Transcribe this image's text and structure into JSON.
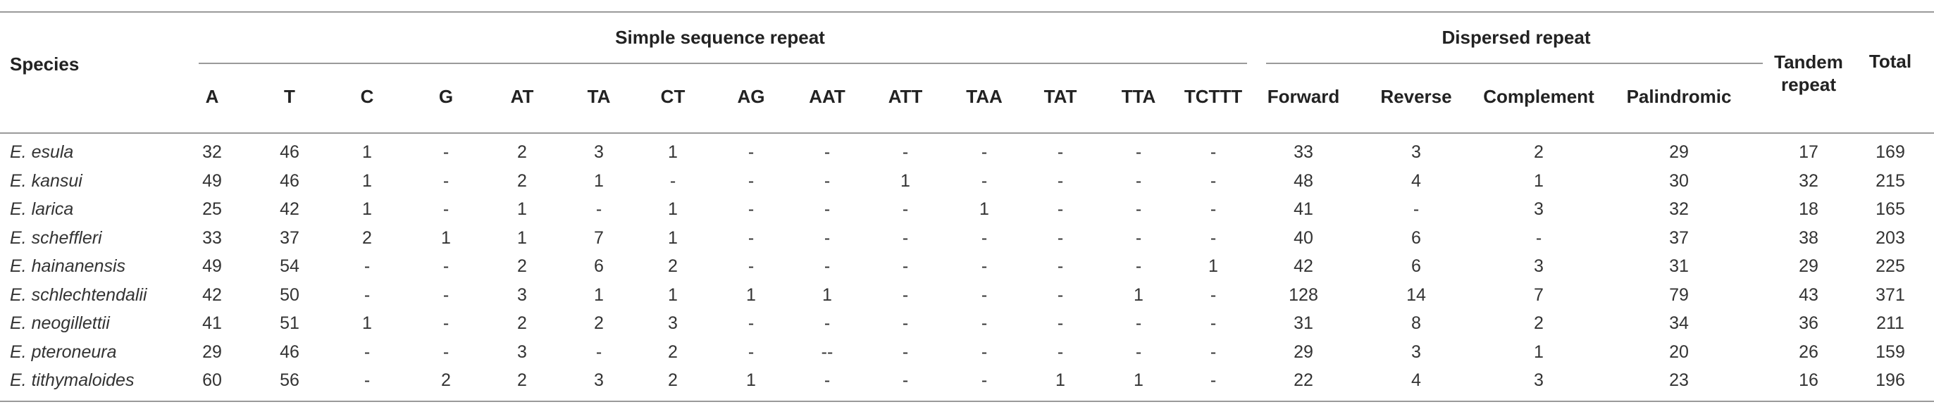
{
  "table": {
    "species_header": "Species",
    "group_ssr": "Simple sequence repeat",
    "group_dispersed": "Dispersed repeat",
    "tandem_header": "Tandem repeat",
    "tandem_line1": "Tandem",
    "tandem_line2": "repeat",
    "total_header": "Total",
    "ssr_columns": [
      "A",
      "T",
      "C",
      "G",
      "AT",
      "TA",
      "CT",
      "AG",
      "AAT",
      "ATT",
      "TAA",
      "TAT",
      "TTA",
      "TCTTT"
    ],
    "dispersed_columns": [
      "Forward",
      "Reverse",
      "Complement",
      "Palindromic"
    ],
    "rows": [
      {
        "species": "E. esula",
        "values": [
          "32",
          "46",
          "1",
          "-",
          "2",
          "3",
          "1",
          "-",
          "-",
          "-",
          "-",
          "-",
          "-",
          "-",
          "33",
          "3",
          "2",
          "29",
          "17",
          "169"
        ]
      },
      {
        "species": "E. kansui",
        "values": [
          "49",
          "46",
          "1",
          "-",
          "2",
          "1",
          "-",
          "-",
          "-",
          "1",
          "-",
          "-",
          "-",
          "-",
          "48",
          "4",
          "1",
          "30",
          "32",
          "215"
        ]
      },
      {
        "species": "E. larica",
        "values": [
          "25",
          "42",
          "1",
          "-",
          "1",
          "-",
          "1",
          "-",
          "-",
          "-",
          "1",
          "-",
          "-",
          "-",
          "41",
          "-",
          "3",
          "32",
          "18",
          "165"
        ]
      },
      {
        "species": "E. scheffleri",
        "values": [
          "33",
          "37",
          "2",
          "1",
          "1",
          "7",
          "1",
          "-",
          "-",
          "-",
          "-",
          "-",
          "-",
          "-",
          "40",
          "6",
          "-",
          "37",
          "38",
          "203"
        ]
      },
      {
        "species": "E. hainanensis",
        "values": [
          "49",
          "54",
          "-",
          "-",
          "2",
          "6",
          "2",
          "-",
          "-",
          "-",
          "-",
          "-",
          "-",
          "1",
          "42",
          "6",
          "3",
          "31",
          "29",
          "225"
        ]
      },
      {
        "species": "E. schlechtendalii",
        "values": [
          "42",
          "50",
          "-",
          "-",
          "3",
          "1",
          "1",
          "1",
          "1",
          "-",
          "-",
          "-",
          "1",
          "-",
          "128",
          "14",
          "7",
          "79",
          "43",
          "371"
        ]
      },
      {
        "species": "E. neogillettii",
        "values": [
          "41",
          "51",
          "1",
          "-",
          "2",
          "2",
          "3",
          "-",
          "-",
          "-",
          "-",
          "-",
          "-",
          "-",
          "31",
          "8",
          "2",
          "34",
          "36",
          "211"
        ]
      },
      {
        "species": "E. pteroneura",
        "values": [
          "29",
          "46",
          "-",
          "-",
          "3",
          "-",
          "2",
          "-",
          "--",
          "-",
          "-",
          "-",
          "-",
          "-",
          "29",
          "3",
          "1",
          "20",
          "26",
          "159"
        ]
      },
      {
        "species": "E. tithymaloides",
        "values": [
          "60",
          "56",
          "-",
          "2",
          "2",
          "3",
          "2",
          "1",
          "-",
          "-",
          "-",
          "1",
          "1",
          "-",
          "22",
          "4",
          "3",
          "23",
          "16",
          "196"
        ]
      }
    ]
  }
}
